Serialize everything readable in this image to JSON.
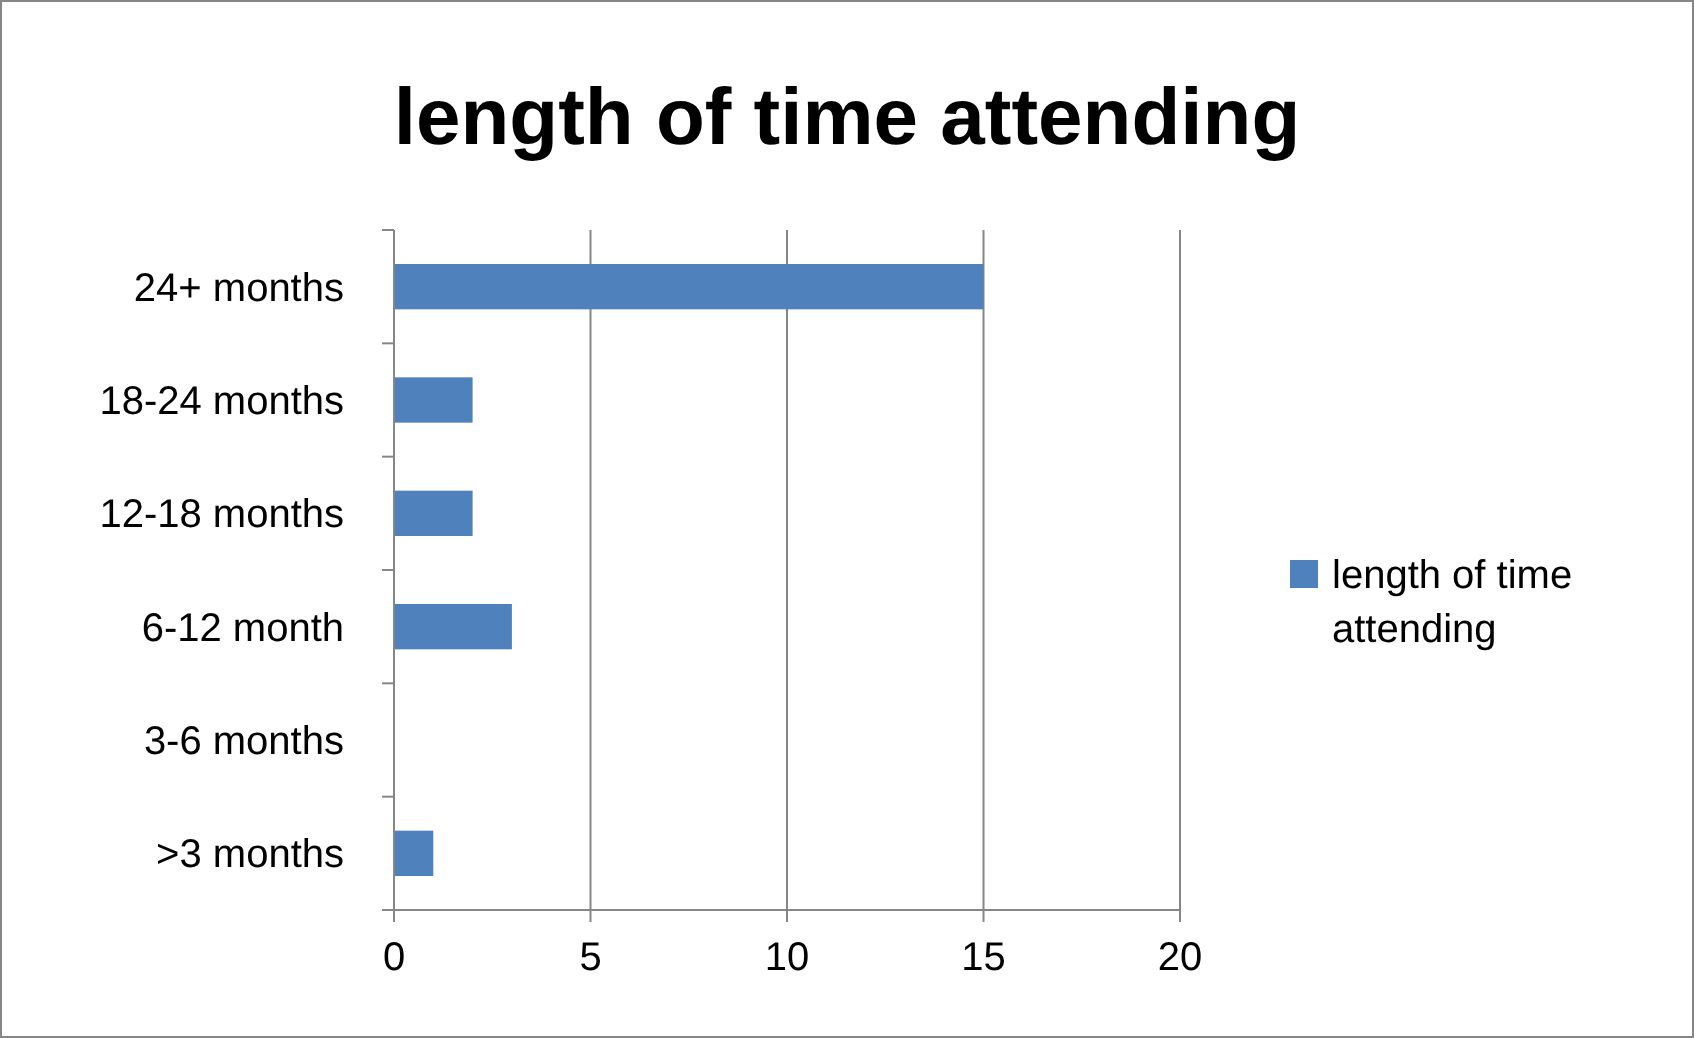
{
  "chart_data": {
    "type": "bar",
    "orientation": "horizontal",
    "title": "length of time attending",
    "categories": [
      "24+ months",
      "18-24 months",
      "12-18 months",
      "6-12 month",
      "3-6 months",
      ">3 months"
    ],
    "series": [
      {
        "name": "length of time attending",
        "color": "#4f81bd",
        "values": [
          15,
          2,
          2,
          3,
          0,
          1
        ]
      }
    ],
    "xlim": [
      0,
      20
    ],
    "xticks": [
      0,
      5,
      10,
      15,
      20
    ],
    "grid": "x",
    "legend": "right"
  }
}
